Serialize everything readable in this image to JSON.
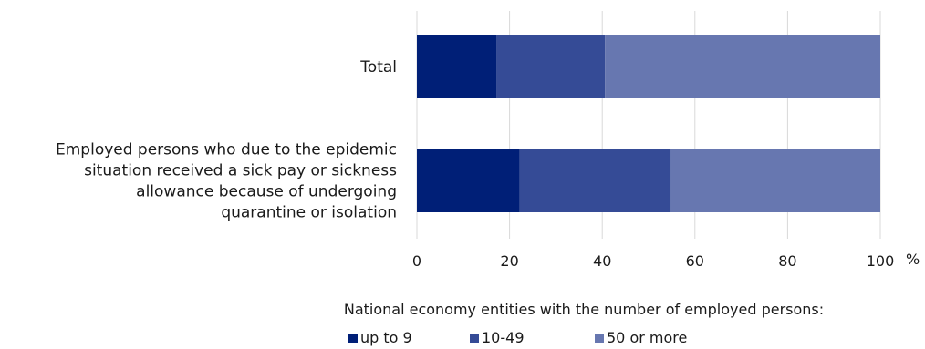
{
  "chart_data": {
    "type": "bar",
    "orientation": "horizontal",
    "stacked": true,
    "categories": [
      [
        "Total"
      ],
      [
        "Employed persons who due to the epidemic",
        "situation received a sick pay or sickness",
        "allowance because of undergoing",
        "quarantine or isolation"
      ]
    ],
    "series": [
      {
        "name": "up to 9",
        "color": "#001f77",
        "values": [
          17.2,
          22.2
        ]
      },
      {
        "name": "10-49",
        "color": "#354b96",
        "values": [
          23.4,
          32.6
        ]
      },
      {
        "name": "50 or more",
        "color": "#6777b0",
        "values": [
          59.4,
          45.2
        ]
      }
    ],
    "xlim": [
      0,
      100
    ],
    "xticks": [
      "0",
      "20",
      "40",
      "60",
      "80",
      "100"
    ],
    "xunit": "%",
    "grid": {
      "vertical": true,
      "color": "#d9d9d9"
    },
    "legend_title": "National economy entities with the number of employed persons:",
    "legend_position": "bottom"
  }
}
